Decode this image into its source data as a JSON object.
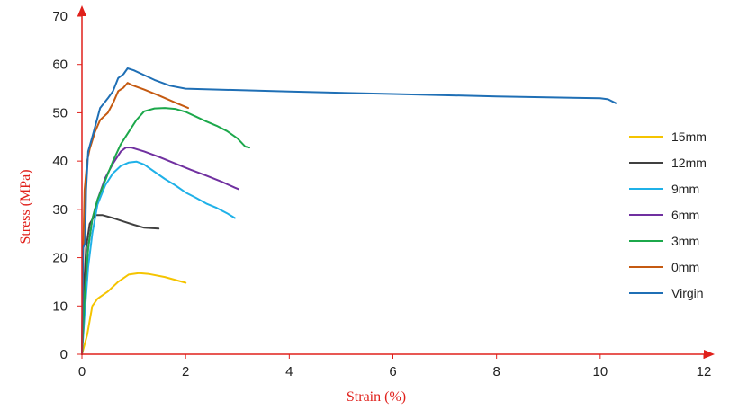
{
  "chart_data": {
    "type": "line",
    "title": "",
    "xlabel": "Strain (%)",
    "ylabel": "Stress (MPa)",
    "xlim": [
      0,
      12
    ],
    "ylim": [
      0,
      70
    ],
    "xticks": [
      0,
      2,
      4,
      6,
      8,
      10,
      12
    ],
    "yticks": [
      0,
      10,
      20,
      30,
      40,
      50,
      60,
      70
    ],
    "xtick_labels": [
      "0",
      "2",
      "4",
      "6",
      "8",
      "10",
      "12"
    ],
    "ytick_labels": [
      "0",
      "10",
      "20",
      "30",
      "40",
      "50",
      "60",
      "70"
    ],
    "grid": false,
    "legend_position": "right",
    "axis_color": "#e0201b",
    "series": [
      {
        "name": "15mm",
        "color": "#f5c400",
        "points": [
          [
            0,
            0
          ],
          [
            0.1,
            4
          ],
          [
            0.2,
            10
          ],
          [
            0.3,
            11.5
          ],
          [
            0.5,
            13
          ],
          [
            0.7,
            15
          ],
          [
            0.9,
            16.5
          ],
          [
            1.1,
            16.8
          ],
          [
            1.3,
            16.6
          ],
          [
            1.6,
            16
          ],
          [
            2.0,
            14.8
          ]
        ]
      },
      {
        "name": "12mm",
        "color": "#404040",
        "points": [
          [
            0,
            0
          ],
          [
            0.03,
            12
          ],
          [
            0.08,
            22
          ],
          [
            0.15,
            27
          ],
          [
            0.25,
            28.8
          ],
          [
            0.4,
            28.8
          ],
          [
            0.6,
            28.2
          ],
          [
            0.8,
            27.5
          ],
          [
            1.0,
            26.8
          ],
          [
            1.2,
            26.2
          ],
          [
            1.48,
            26
          ]
        ]
      },
      {
        "name": "9mm",
        "color": "#1fb1e8",
        "points": [
          [
            0,
            0
          ],
          [
            0.05,
            8
          ],
          [
            0.12,
            18
          ],
          [
            0.2,
            25
          ],
          [
            0.3,
            31
          ],
          [
            0.45,
            35
          ],
          [
            0.6,
            37.5
          ],
          [
            0.75,
            39
          ],
          [
            0.9,
            39.7
          ],
          [
            1.05,
            39.9
          ],
          [
            1.2,
            39.3
          ],
          [
            1.4,
            37.8
          ],
          [
            1.6,
            36.3
          ],
          [
            1.8,
            35
          ],
          [
            2.0,
            33.5
          ],
          [
            2.2,
            32.4
          ],
          [
            2.4,
            31.2
          ],
          [
            2.6,
            30.3
          ],
          [
            2.8,
            29.2
          ],
          [
            2.95,
            28.2
          ]
        ]
      },
      {
        "name": "6mm",
        "color": "#7030a0",
        "points": [
          [
            0,
            0
          ],
          [
            0.05,
            12
          ],
          [
            0.12,
            22
          ],
          [
            0.2,
            28
          ],
          [
            0.3,
            32
          ],
          [
            0.45,
            36.5
          ],
          [
            0.6,
            39.5
          ],
          [
            0.75,
            42
          ],
          [
            0.85,
            42.8
          ],
          [
            0.95,
            42.8
          ],
          [
            1.2,
            42
          ],
          [
            1.5,
            40.8
          ],
          [
            1.8,
            39.5
          ],
          [
            2.1,
            38.2
          ],
          [
            2.4,
            37
          ],
          [
            2.7,
            35.7
          ],
          [
            2.95,
            34.5
          ],
          [
            3.02,
            34.2
          ]
        ]
      },
      {
        "name": "3mm",
        "color": "#1ca84b",
        "points": [
          [
            0,
            0
          ],
          [
            0.05,
            12
          ],
          [
            0.12,
            22
          ],
          [
            0.2,
            28
          ],
          [
            0.3,
            32
          ],
          [
            0.45,
            36
          ],
          [
            0.6,
            40
          ],
          [
            0.75,
            43.5
          ],
          [
            0.9,
            46
          ],
          [
            1.05,
            48.5
          ],
          [
            1.2,
            50.3
          ],
          [
            1.4,
            50.9
          ],
          [
            1.6,
            51
          ],
          [
            1.8,
            50.8
          ],
          [
            2.0,
            50.2
          ],
          [
            2.2,
            49.2
          ],
          [
            2.4,
            48.2
          ],
          [
            2.6,
            47.3
          ],
          [
            2.8,
            46.2
          ],
          [
            3.0,
            44.7
          ],
          [
            3.15,
            43
          ],
          [
            3.23,
            42.8
          ]
        ]
      },
      {
        "name": "0mm",
        "color": "#c55a11",
        "points": [
          [
            0,
            0
          ],
          [
            0.02,
            20
          ],
          [
            0.05,
            34
          ],
          [
            0.1,
            40
          ],
          [
            0.15,
            42.5
          ],
          [
            0.25,
            46
          ],
          [
            0.35,
            48.5
          ],
          [
            0.5,
            50
          ],
          [
            0.6,
            52
          ],
          [
            0.7,
            54.5
          ],
          [
            0.8,
            55.2
          ],
          [
            0.88,
            56.2
          ],
          [
            0.95,
            55.8
          ],
          [
            1.2,
            54.8
          ],
          [
            1.5,
            53.5
          ],
          [
            1.8,
            52.1
          ],
          [
            2.05,
            51
          ]
        ]
      },
      {
        "name": "Virgin",
        "color": "#1f6fb5",
        "points": [
          [
            0,
            0
          ],
          [
            0.02,
            22
          ],
          [
            0.06,
            23
          ],
          [
            0.08,
            34
          ],
          [
            0.12,
            42
          ],
          [
            0.2,
            45
          ],
          [
            0.35,
            51
          ],
          [
            0.5,
            53
          ],
          [
            0.6,
            54.5
          ],
          [
            0.7,
            57.2
          ],
          [
            0.8,
            58
          ],
          [
            0.88,
            59.2
          ],
          [
            1.0,
            58.8
          ],
          [
            1.2,
            57.8
          ],
          [
            1.4,
            56.8
          ],
          [
            1.7,
            55.6
          ],
          [
            2.0,
            55
          ],
          [
            4.0,
            54.4
          ],
          [
            6.0,
            53.9
          ],
          [
            8.0,
            53.4
          ],
          [
            10.0,
            53
          ],
          [
            10.15,
            52.8
          ],
          [
            10.3,
            52
          ]
        ]
      }
    ]
  }
}
